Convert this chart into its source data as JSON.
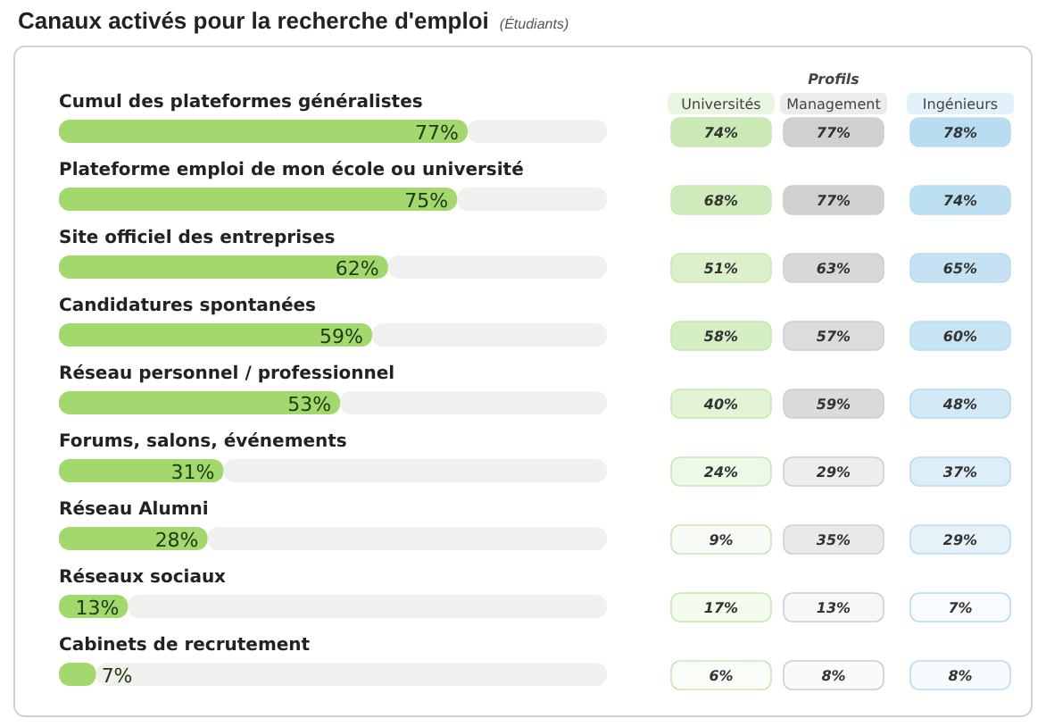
{
  "chart_data": [
    {
      "type": "bar",
      "orientation": "horizontal",
      "title": "Canaux activés pour la recherche d'emploi",
      "subtitle": "(Étudiants)",
      "categories": [
        "Cumul des plateformes généralistes",
        "Plateforme emploi de mon école ou université",
        "Site officiel des entreprises",
        "Candidatures spontanées",
        "Réseau personnel / professionnel",
        "Forums, salons, événements",
        "Réseau Alumni",
        "Réseaux sociaux",
        "Cabinets de recrutement"
      ],
      "values": [
        77,
        75,
        62,
        59,
        53,
        31,
        28,
        13,
        7
      ],
      "value_labels": [
        "77%",
        "75%",
        "62%",
        "59%",
        "53%",
        "31%",
        "28%",
        "13%",
        "7%"
      ],
      "color": "#a3d86f"
    },
    {
      "type": "heatmap",
      "title": "Profils",
      "categories": [
        "Universités",
        "Management",
        "Ingénieurs"
      ],
      "y_categories": [
        null,
        null,
        null,
        null,
        null,
        null,
        null,
        null,
        null
      ],
      "cells": [
        [
          74,
          77,
          78
        ],
        [
          68,
          77,
          74
        ],
        [
          51,
          63,
          65
        ],
        [
          58,
          57,
          60
        ],
        [
          40,
          59,
          48
        ],
        [
          24,
          29,
          37
        ],
        [
          9,
          35,
          29
        ],
        [
          17,
          13,
          7
        ],
        [
          6,
          8,
          8
        ]
      ],
      "cell_labels": [
        [
          "74%",
          "77%",
          "78%"
        ],
        [
          "68%",
          "77%",
          "74%"
        ],
        [
          "51%",
          "63%",
          "65%"
        ],
        [
          "58%",
          "57%",
          "60%"
        ],
        [
          "40%",
          "59%",
          "48%"
        ],
        [
          "24%",
          "29%",
          "37%"
        ],
        [
          "9%",
          "35%",
          "29%"
        ],
        [
          "17%",
          "13%",
          "7%"
        ],
        [
          "6%",
          "8%",
          "8%"
        ]
      ]
    }
  ]
}
